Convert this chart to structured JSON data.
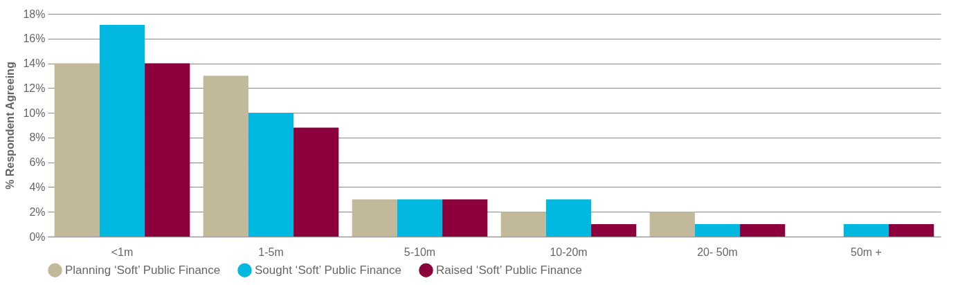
{
  "chart_data": {
    "type": "bar",
    "ylabel": "% Respondent Agreeing",
    "categories": [
      "<1m",
      "1-5m",
      "5-10m",
      "10-20m",
      "20- 50m",
      "50m +"
    ],
    "series": [
      {
        "name": "Planning ‘Soft’ Public Finance",
        "color": "#c2b99b",
        "values": [
          14,
          13,
          3,
          2,
          2,
          null
        ]
      },
      {
        "name": "Sought ‘Soft’ Public Finance",
        "color": "#00b8e0",
        "values": [
          17.1,
          10,
          3,
          3,
          1,
          1
        ]
      },
      {
        "name": "Raised ‘Soft’ Public Finance",
        "color": "#8b003c",
        "values": [
          14,
          8.8,
          3,
          1,
          1,
          1
        ]
      }
    ],
    "ylim": [
      0,
      18
    ],
    "yticks": [
      {
        "value": 0,
        "label": "0%"
      },
      {
        "value": 2,
        "label": "2%"
      },
      {
        "value": 4,
        "label": "4%"
      },
      {
        "value": 6,
        "label": "6%"
      },
      {
        "value": 8,
        "label": "8%"
      },
      {
        "value": 10,
        "label": "10%"
      },
      {
        "value": 12,
        "label": "12%"
      },
      {
        "value": 14,
        "label": "14%"
      },
      {
        "value": 16,
        "label": "16%"
      },
      {
        "value": 18,
        "label": "18%"
      }
    ],
    "grid": "y",
    "legend": "bottom"
  }
}
